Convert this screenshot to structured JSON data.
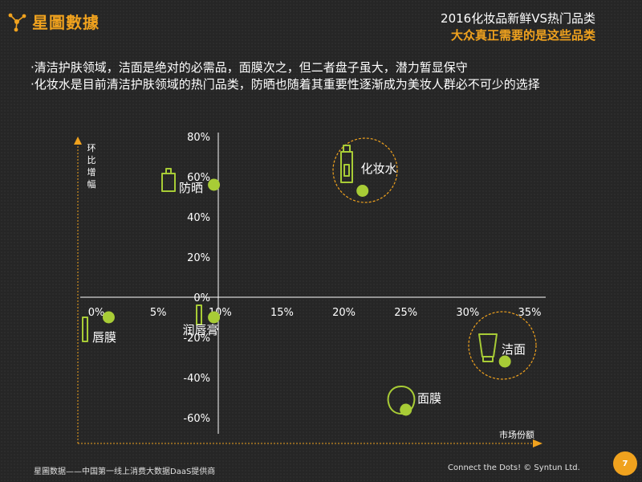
{
  "brand": {
    "logo_text": "星圖數據",
    "icon": "network-nodes-icon",
    "accent": "#f0a21e"
  },
  "header": {
    "title": "2016化妆品新鲜VS热门品类",
    "subtitle": "大众真正需要的是这些品类"
  },
  "bullets": [
    "·清洁护肤领域，洁面是绝对的必需品，面膜次之，但二者盘子虽大，潜力暂显保守",
    "·化妆水是目前清洁护肤领域的热门品类，防晒也随着其重要性逐渐成为美妆人群必不可少的选择"
  ],
  "chart_data": {
    "type": "scatter",
    "xlabel": "市场份额",
    "ylabel": "环比增幅",
    "x_ticks": [
      "0%",
      "5%",
      "10%",
      "15%",
      "20%",
      "25%",
      "30%",
      "35%"
    ],
    "y_ticks": [
      "80%",
      "60%",
      "40%",
      "20%",
      "0%",
      "-20%",
      "-40%",
      "-60%"
    ],
    "xlim": [
      0,
      35
    ],
    "ylim": [
      -60,
      80
    ],
    "point_color": "#a8cc36",
    "highlight_color": "#f0a21e",
    "points": [
      {
        "label": "化妆水",
        "x": 21.5,
        "y": 53,
        "icon": "toner-bottle-icon",
        "highlighted": true
      },
      {
        "label": "防晒",
        "x": 9.5,
        "y": 56,
        "icon": "sunscreen-bottle-icon",
        "highlighted": false
      },
      {
        "label": "唇膜",
        "x": 1.0,
        "y": -10,
        "icon": "lip-mask-tube-icon",
        "highlighted": false
      },
      {
        "label": "润唇膏",
        "x": 9.5,
        "y": -10,
        "icon": "lip-balm-icon",
        "highlighted": false
      },
      {
        "label": "洁面",
        "x": 33.0,
        "y": -32,
        "icon": "cleanser-tube-icon",
        "highlighted": true
      },
      {
        "label": "面膜",
        "x": 25.0,
        "y": -56,
        "icon": "face-mask-icon",
        "highlighted": false
      }
    ]
  },
  "footer": {
    "left_text": "星圖数据——中国第一线上消费大数据DaaS提供商",
    "right_text": "Connect the Dots! © Syntun Ltd.",
    "page_number": "7"
  }
}
